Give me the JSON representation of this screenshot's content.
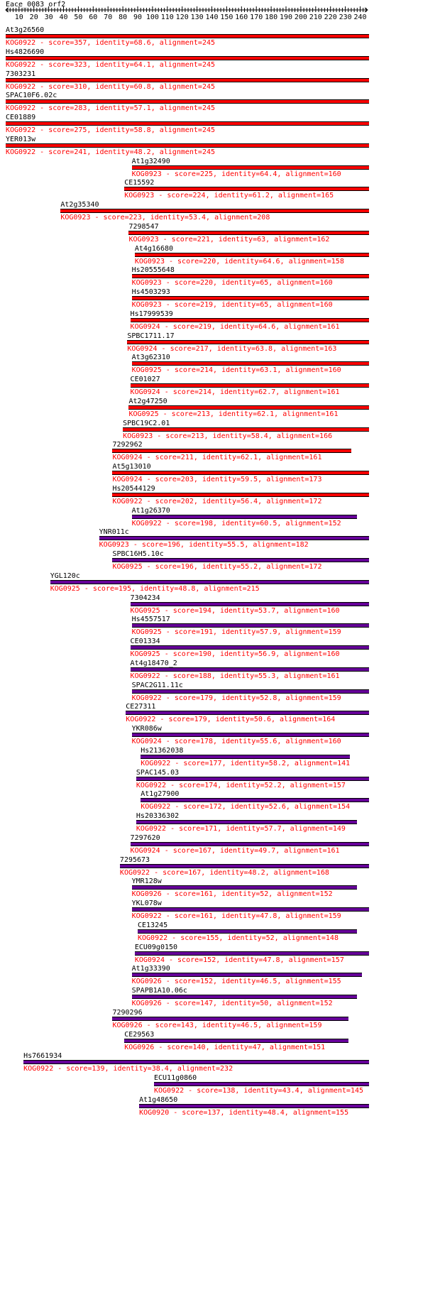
{
  "query": "Eace_0083_orf2",
  "ruler": {
    "ticks": [
      10,
      20,
      30,
      40,
      50,
      60,
      70,
      80,
      90,
      100,
      110,
      120,
      130,
      140,
      150,
      160,
      170,
      180,
      190,
      200,
      210,
      220,
      230,
      240
    ]
  },
  "colors": {
    "high": "#ff0000",
    "low": "#660099",
    "bar_border": "#000000",
    "label": "#000000",
    "info": "#ff0000"
  },
  "hits": [
    {
      "name": "At3g26560",
      "kog": "KOG0922",
      "score": 357,
      "identity": "68.6",
      "alignment": 245,
      "start": 1,
      "end": 245
    },
    {
      "name": "Hs4826690",
      "kog": "KOG0922",
      "score": 323,
      "identity": "64.1",
      "alignment": 245,
      "start": 1,
      "end": 245
    },
    {
      "name": "7303231",
      "kog": "KOG0922",
      "score": 310,
      "identity": "60.8",
      "alignment": 245,
      "start": 1,
      "end": 245
    },
    {
      "name": "SPAC10F6.02c",
      "kog": "KOG0922",
      "score": 283,
      "identity": "57.1",
      "alignment": 245,
      "start": 1,
      "end": 245
    },
    {
      "name": "CE01889",
      "kog": "KOG0922",
      "score": 275,
      "identity": "58.8",
      "alignment": 245,
      "start": 1,
      "end": 245
    },
    {
      "name": "YER013w",
      "kog": "KOG0922",
      "score": 241,
      "identity": "48.2",
      "alignment": 245,
      "start": 1,
      "end": 245
    },
    {
      "name": "At1g32490",
      "kog": "KOG0923",
      "score": 225,
      "identity": "64.4",
      "alignment": 160,
      "start": 86,
      "end": 245
    },
    {
      "name": "CE15592",
      "kog": "KOG0923",
      "score": 224,
      "identity": "61.2",
      "alignment": 165,
      "start": 81,
      "end": 245
    },
    {
      "name": "At2g35340",
      "kog": "KOG0923",
      "score": 223,
      "identity": "53.4",
      "alignment": 208,
      "start": 38,
      "end": 245
    },
    {
      "name": "7298547",
      "kog": "KOG0923",
      "score": 221,
      "identity": "63",
      "alignment": 162,
      "start": 84,
      "end": 245
    },
    {
      "name": "At4g16680",
      "kog": "KOG0923",
      "score": 220,
      "identity": "64.6",
      "alignment": 158,
      "start": 88,
      "end": 245
    },
    {
      "name": "Hs20555648",
      "kog": "KOG0923",
      "score": 220,
      "identity": "65",
      "alignment": 160,
      "start": 86,
      "end": 245
    },
    {
      "name": "Hs4503293",
      "kog": "KOG0923",
      "score": 219,
      "identity": "65",
      "alignment": 160,
      "start": 86,
      "end": 245
    },
    {
      "name": "Hs17999539",
      "kog": "KOG0924",
      "score": 219,
      "identity": "64.6",
      "alignment": 161,
      "start": 85,
      "end": 245
    },
    {
      "name": "SPBC1711.17",
      "kog": "KOG0924",
      "score": 217,
      "identity": "63.8",
      "alignment": 163,
      "start": 83,
      "end": 245
    },
    {
      "name": "At3g62310",
      "kog": "KOG0925",
      "score": 214,
      "identity": "63.1",
      "alignment": 160,
      "start": 86,
      "end": 245
    },
    {
      "name": "CE01027",
      "kog": "KOG0924",
      "score": 214,
      "identity": "62.7",
      "alignment": 161,
      "start": 85,
      "end": 245
    },
    {
      "name": "At2g47250",
      "kog": "KOG0925",
      "score": 213,
      "identity": "62.1",
      "alignment": 161,
      "start": 84,
      "end": 245
    },
    {
      "name": "SPBC19C2.01",
      "kog": "KOG0923",
      "score": 213,
      "identity": "58.4",
      "alignment": 166,
      "start": 80,
      "end": 245
    },
    {
      "name": "7292962",
      "kog": "KOG0924",
      "score": 211,
      "identity": "62.1",
      "alignment": 161,
      "start": 73,
      "end": 233
    },
    {
      "name": "At5g13010",
      "kog": "KOG0924",
      "score": 203,
      "identity": "59.5",
      "alignment": 173,
      "start": 73,
      "end": 245
    },
    {
      "name": "Hs20544129",
      "kog": "KOG0922",
      "score": 202,
      "identity": "56.4",
      "alignment": 172,
      "start": 73,
      "end": 245
    },
    {
      "name": "At1g26370",
      "kog": "KOG0922",
      "score": 198,
      "identity": "60.5",
      "alignment": 152,
      "start": 86,
      "end": 237
    },
    {
      "name": "YNR011c",
      "kog": "KOG0923",
      "score": 196,
      "identity": "55.5",
      "alignment": 182,
      "start": 64,
      "end": 245
    },
    {
      "name": "SPBC16H5.10c",
      "kog": "KOG0925",
      "score": 196,
      "identity": "55.2",
      "alignment": 172,
      "start": 73,
      "end": 245
    },
    {
      "name": "YGL120c",
      "kog": "KOG0925",
      "score": 195,
      "identity": "48.8",
      "alignment": 215,
      "start": 31,
      "end": 245
    },
    {
      "name": "7304234",
      "kog": "KOG0925",
      "score": 194,
      "identity": "53.7",
      "alignment": 160,
      "start": 85,
      "end": 245
    },
    {
      "name": "Hs4557517",
      "kog": "KOG0925",
      "score": 191,
      "identity": "57.9",
      "alignment": 159,
      "start": 86,
      "end": 245
    },
    {
      "name": "CE01334",
      "kog": "KOG0925",
      "score": 190,
      "identity": "56.9",
      "alignment": 160,
      "start": 85,
      "end": 245
    },
    {
      "name": "At4g18470_2",
      "kog": "KOG0922",
      "score": 188,
      "identity": "55.3",
      "alignment": 161,
      "start": 85,
      "end": 245
    },
    {
      "name": "SPAC2G11.11c",
      "kog": "KOG0922",
      "score": 179,
      "identity": "52.8",
      "alignment": 159,
      "start": 86,
      "end": 245
    },
    {
      "name": "CE27311",
      "kog": "KOG0922",
      "score": 179,
      "identity": "50.6",
      "alignment": 164,
      "start": 82,
      "end": 245
    },
    {
      "name": "YKR086w",
      "kog": "KOG0924",
      "score": 178,
      "identity": "55.6",
      "alignment": 160,
      "start": 86,
      "end": 245
    },
    {
      "name": "Hs21362038",
      "kog": "KOG0922",
      "score": 177,
      "identity": "58.2",
      "alignment": 141,
      "start": 92,
      "end": 232
    },
    {
      "name": "SPAC145.03",
      "kog": "KOG0922",
      "score": 174,
      "identity": "52.2",
      "alignment": 157,
      "start": 89,
      "end": 245
    },
    {
      "name": "At1g27900",
      "kog": "KOG0922",
      "score": 172,
      "identity": "52.6",
      "alignment": 154,
      "start": 92,
      "end": 245
    },
    {
      "name": "Hs20336302",
      "kog": "KOG0922",
      "score": 171,
      "identity": "57.7",
      "alignment": 149,
      "start": 89,
      "end": 237
    },
    {
      "name": "7297620",
      "kog": "KOG0924",
      "score": 167,
      "identity": "49.7",
      "alignment": 161,
      "start": 85,
      "end": 245
    },
    {
      "name": "7295673",
      "kog": "KOG0922",
      "score": 167,
      "identity": "48.2",
      "alignment": 168,
      "start": 78,
      "end": 245
    },
    {
      "name": "YMR128w",
      "kog": "KOG0926",
      "score": 161,
      "identity": "52",
      "alignment": 152,
      "start": 86,
      "end": 237
    },
    {
      "name": "YKL078w",
      "kog": "KOG0922",
      "score": 161,
      "identity": "47.8",
      "alignment": 159,
      "start": 86,
      "end": 245
    },
    {
      "name": "CE13245",
      "kog": "KOG0922",
      "score": 155,
      "identity": "52",
      "alignment": 148,
      "start": 90,
      "end": 237
    },
    {
      "name": "ECU09g0150",
      "kog": "KOG0924",
      "score": 152,
      "identity": "47.8",
      "alignment": 157,
      "start": 88,
      "end": 245
    },
    {
      "name": "At1g33390",
      "kog": "KOG0926",
      "score": 152,
      "identity": "46.5",
      "alignment": 155,
      "start": 86,
      "end": 240
    },
    {
      "name": "SPAPB1A10.06c",
      "kog": "KOG0926",
      "score": 147,
      "identity": "50",
      "alignment": 152,
      "start": 86,
      "end": 237
    },
    {
      "name": "7290296",
      "kog": "KOG0926",
      "score": 143,
      "identity": "46.5",
      "alignment": 159,
      "start": 73,
      "end": 231
    },
    {
      "name": "CE29563",
      "kog": "KOG0926",
      "score": 140,
      "identity": "47",
      "alignment": 151,
      "start": 81,
      "end": 231
    },
    {
      "name": "Hs7661934",
      "kog": "KOG0922",
      "score": 139,
      "identity": "38.4",
      "alignment": 232,
      "start": 13,
      "end": 245
    },
    {
      "name": "ECU11g0860",
      "kog": "KOG0922",
      "score": 138,
      "identity": "43.4",
      "alignment": 145,
      "start": 101,
      "end": 245
    },
    {
      "name": "At1g48650",
      "kog": "KOG0920",
      "score": 137,
      "identity": "48.4",
      "alignment": 155,
      "start": 91,
      "end": 245
    }
  ]
}
